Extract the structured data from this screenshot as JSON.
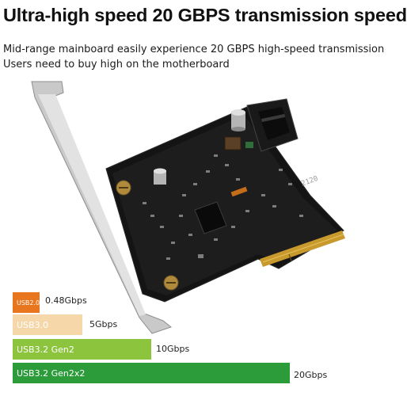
{
  "headline": "Ultra-high speed 20 GBPS transmission speed",
  "subtitle_lines": [
    "Mid-range mainboard easily experience 20 GBPS high-speed transmission",
    "Users need to buy high on the motherboard"
  ],
  "board_marking": "2120",
  "bars": [
    {
      "label": "USB2.0",
      "value": "0.48Gbps",
      "speed_gbps": 0.48,
      "color": "#e8761e"
    },
    {
      "label": "USB3.0",
      "value": "5Gbps",
      "speed_gbps": 5,
      "color": "#f6d7a9"
    },
    {
      "label": "USB3.2 Gen2",
      "value": "10Gbps",
      "speed_gbps": 10,
      "color": "#8cc43d"
    },
    {
      "label": "USB3.2 Gen2x2",
      "value": "20Gbps",
      "speed_gbps": 20,
      "color": "#2c9b3a"
    }
  ]
}
